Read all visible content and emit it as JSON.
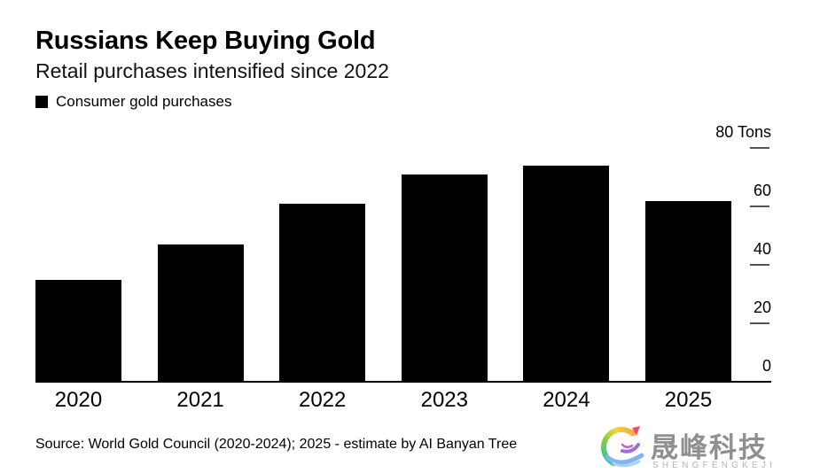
{
  "header": {
    "title": "Russians Keep Buying Gold",
    "subtitle": "Retail purchases intensified since 2022"
  },
  "legend": {
    "swatch_color": "#000000",
    "label": "Consumer gold purchases"
  },
  "chart_data": {
    "type": "bar",
    "title": "Russians Keep Buying Gold",
    "subtitle": "Retail purchases intensified since 2022",
    "categories": [
      "2020",
      "2021",
      "2022",
      "2023",
      "2024",
      "2025"
    ],
    "series": [
      {
        "name": "Consumer gold purchases",
        "values": [
          35,
          47,
          61,
          71,
          74,
          62
        ]
      }
    ],
    "unit": "Tons",
    "ylabel": "Tons",
    "xlabel": "",
    "ylim": [
      0,
      80
    ],
    "yticks": [
      0,
      20,
      40,
      60,
      80
    ],
    "ytick_labels": [
      "0",
      "20",
      "40",
      "60",
      "80 Tons"
    ],
    "axis_side": "right",
    "bar_color": "#000000",
    "grid": false,
    "legend_position": "top-left"
  },
  "footer": {
    "source_note": "Source: World Gold Council (2020-2024); 2025 - estimate by AI Banyan Tree"
  },
  "watermark": {
    "icon": "rainbow-swirl-logo",
    "brand_cn": "晟峰科技",
    "brand_en": "SHENGFENGKEJI",
    "brand_color": "#8f8f8f",
    "subtext_color": "#b5b5b5"
  },
  "colors": {
    "background": "#ffffff",
    "bar": "#000000",
    "axis_line": "#000000",
    "tick_dash": "#555555"
  }
}
